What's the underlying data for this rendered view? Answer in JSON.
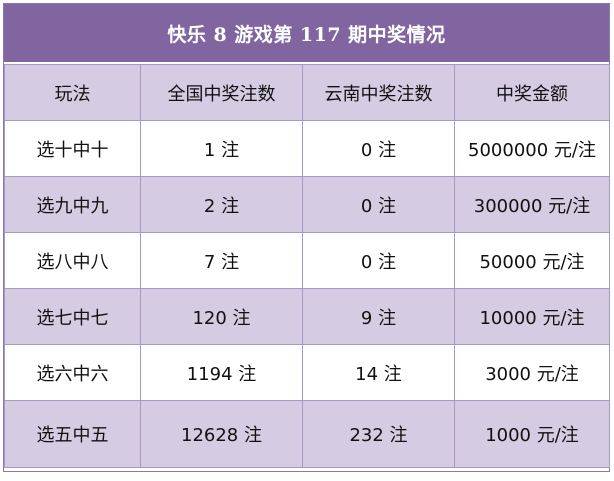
{
  "title": "快乐 8 游戏第 117 期中奖情况",
  "headers": [
    "玩法",
    "全国中奖注数",
    "云南中奖注数",
    "中奖金额"
  ],
  "rows": [
    {
      "play": "选十中十",
      "national": "1 注",
      "yunnan": "0 注",
      "prize": "5000000 元/注"
    },
    {
      "play": "选九中九",
      "national": "2 注",
      "yunnan": "0 注",
      "prize": "300000 元/注"
    },
    {
      "play": "选八中八",
      "national": "7 注",
      "yunnan": "0 注",
      "prize": "50000 元/注"
    },
    {
      "play": "选七中七",
      "national": "120 注",
      "yunnan": "9 注",
      "prize": "10000 元/注"
    },
    {
      "play": "选六中六",
      "national": "1194 注",
      "yunnan": "14 注",
      "prize": "3000 元/注"
    },
    {
      "play": "选五中五",
      "national": "12628 注",
      "yunnan": "232 注",
      "prize": "1000 元/注"
    }
  ],
  "colors": {
    "title_bg": "#8065a1",
    "header_bg": "#d5cbe3",
    "stripe_bg": "#d5cbe3",
    "border": "#a898c0"
  }
}
